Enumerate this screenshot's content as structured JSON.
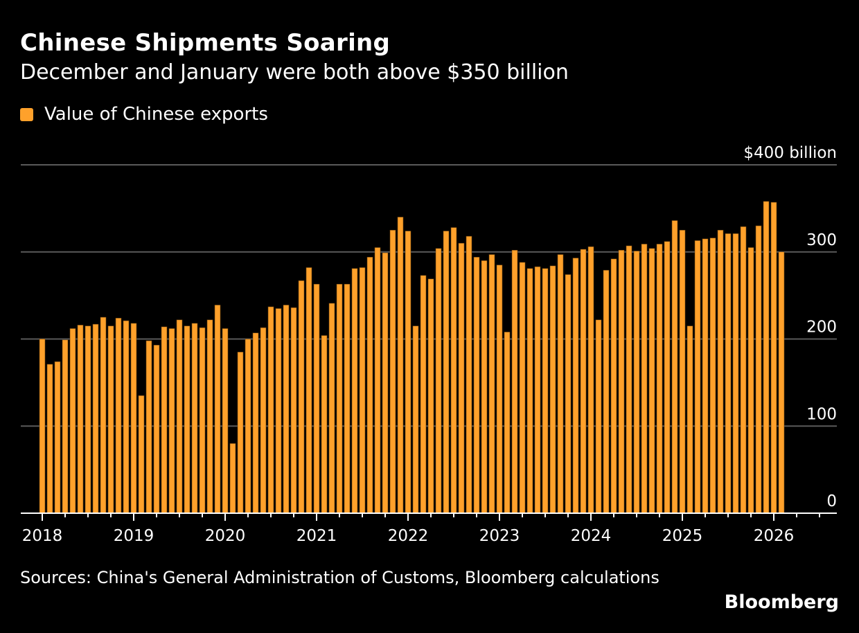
{
  "title": "Chinese Shipments Soaring",
  "subtitle": "December and January were both above $350 billion",
  "source": "Sources: China's General Administration of Customs, Bloomberg calculations",
  "brand": "Bloomberg",
  "colors": {
    "bar": "#ffa12b",
    "background": "#000000",
    "grid": "#5a5a5a"
  },
  "chart_data": {
    "type": "bar",
    "title": "Chinese Shipments Soaring",
    "subtitle": "December and January were both above $350 billion",
    "legend": {
      "position": "top-left",
      "entries": [
        "Value of Chinese exports"
      ]
    },
    "series": [
      {
        "name": "Value of Chinese exports",
        "start": "2018-01",
        "frequency": "monthly",
        "values": [
          200,
          171,
          174,
          199,
          212,
          216,
          215,
          217,
          225,
          215,
          224,
          221,
          218,
          135,
          198,
          193,
          214,
          212,
          222,
          215,
          218,
          213,
          222,
          239,
          212,
          80,
          185,
          200,
          207,
          213,
          237,
          235,
          239,
          236,
          267,
          282,
          263,
          204,
          241,
          263,
          263,
          281,
          282,
          294,
          305,
          299,
          325,
          340,
          324,
          215,
          273,
          269,
          304,
          324,
          328,
          310,
          318,
          294,
          290,
          297,
          285,
          208,
          302,
          288,
          281,
          283,
          281,
          284,
          297,
          274,
          293,
          303,
          306,
          222,
          279,
          292,
          302,
          307,
          301,
          309,
          304,
          309,
          312,
          336,
          325,
          215,
          313,
          315,
          316,
          325,
          321,
          321,
          329,
          305,
          330,
          358,
          357,
          300
        ]
      }
    ],
    "x_tick_labels": [
      "2018",
      "2019",
      "2020",
      "2021",
      "2022",
      "2023",
      "2024",
      "2025",
      "2026"
    ],
    "y_tick_labels": [
      "0",
      "100",
      "200",
      "300",
      "$400 billion"
    ],
    "y_ticks": [
      0,
      100,
      200,
      300,
      400
    ],
    "ylim": [
      0,
      400
    ],
    "grid": true,
    "y_axis_side": "right"
  }
}
